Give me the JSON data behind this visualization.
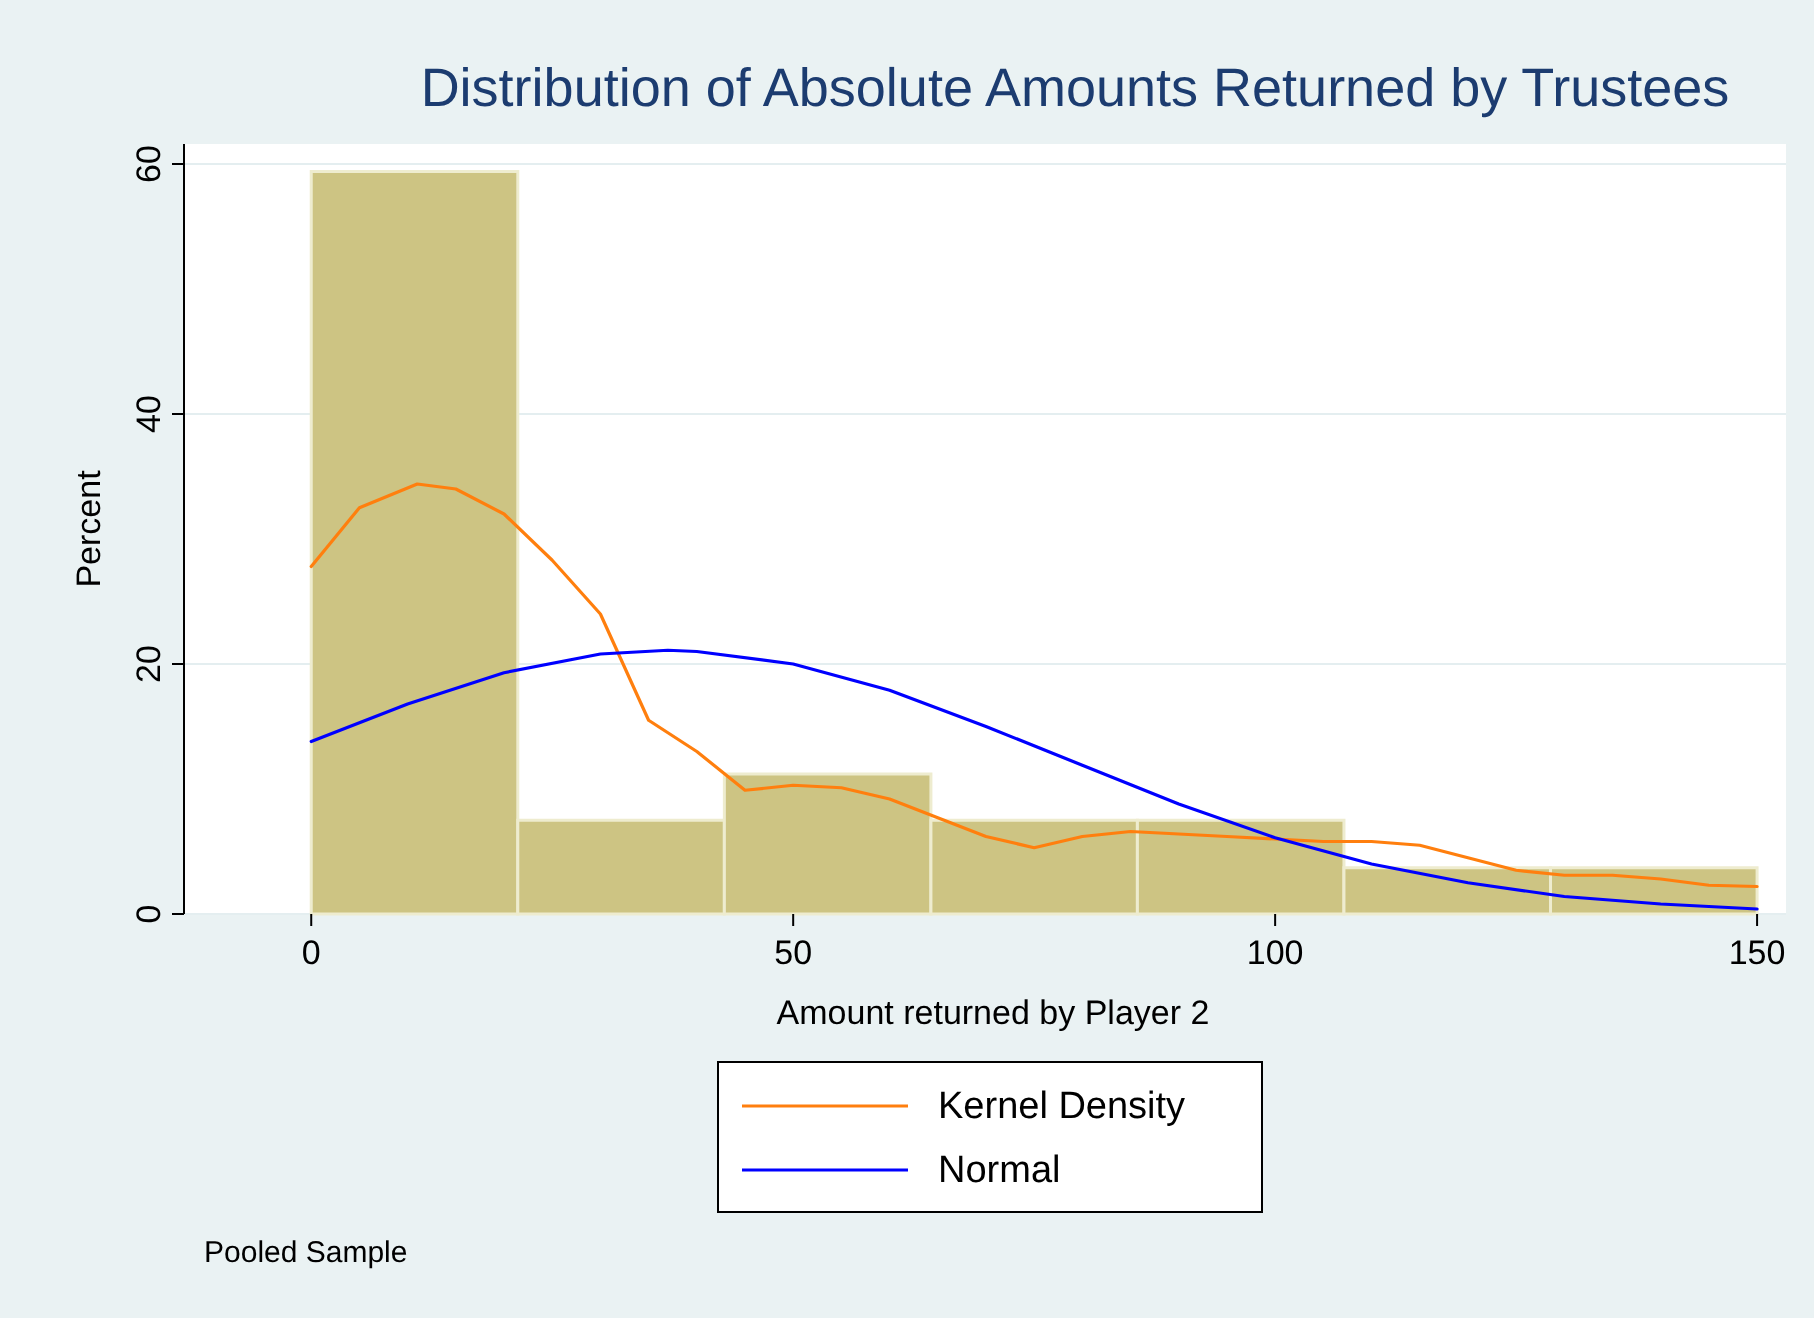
{
  "chart_data": {
    "type": "histogram",
    "title": "Distribution of Absolute Amounts Returned by Trustees",
    "xlabel": "Amount returned by Player 2",
    "ylabel": "Percent",
    "bins": [
      0,
      21.43,
      42.86,
      64.29,
      85.71,
      107.14,
      128.57,
      150
    ],
    "values": [
      59.4,
      7.5,
      11.2,
      7.5,
      7.5,
      3.7,
      3.7
    ],
    "color": "#cdc483",
    "series": [
      {
        "name": "Kernel Density",
        "type": "line",
        "color": "#ff7f0e",
        "x": [
          0,
          5,
          11,
          15,
          20,
          25,
          30,
          35,
          40,
          45,
          50,
          55,
          60,
          65,
          70,
          75,
          80,
          85,
          90,
          95,
          100,
          105,
          110,
          115,
          120,
          125,
          130,
          135,
          140,
          145,
          150
        ],
        "values": [
          27.8,
          32.5,
          34.4,
          34,
          32,
          28.3,
          24,
          15.5,
          13,
          9.9,
          10.3,
          10.1,
          9.2,
          7.7,
          6.2,
          5.3,
          6.2,
          6.6,
          6.4,
          6.2,
          6,
          5.8,
          5.8,
          5.5,
          4.5,
          3.5,
          3.1,
          3.1,
          2.8,
          2.3,
          2.2
        ]
      },
      {
        "name": "Normal",
        "type": "line",
        "color": "#0000ff",
        "x": [
          0,
          10,
          20,
          30,
          37,
          40,
          50,
          60,
          70,
          80,
          90,
          100,
          110,
          120,
          130,
          140,
          150
        ],
        "values": [
          13.8,
          16.8,
          19.3,
          20.8,
          21.1,
          21,
          20,
          17.9,
          15,
          11.9,
          8.8,
          6.1,
          4,
          2.5,
          1.4,
          0.8,
          0.4
        ]
      }
    ],
    "xlim": [
      -13.2,
      153
    ],
    "xticks": [
      0,
      50,
      100,
      150
    ],
    "ylim": [
      0,
      61.6
    ],
    "yticks": [
      0,
      20,
      40,
      60
    ],
    "grid": "y",
    "legend": "bottom",
    "annotations": [
      "Pooled Sample"
    ]
  }
}
